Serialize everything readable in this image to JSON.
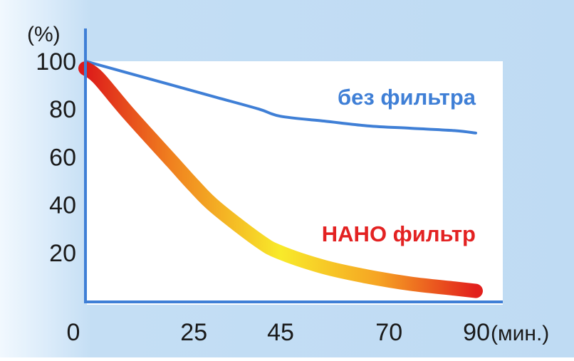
{
  "chart_data": {
    "type": "line",
    "title": "",
    "xlabel": "(мин.)",
    "ylabel": "(%)",
    "x_ticks": [
      "0",
      "25",
      "45",
      "70",
      "90"
    ],
    "y_ticks": [
      "20",
      "40",
      "60",
      "80",
      "100"
    ],
    "xlim": [
      0,
      90
    ],
    "ylim": [
      0,
      100
    ],
    "grid": false,
    "series": [
      {
        "name": "без фильтра",
        "color": "#3f7fd6",
        "x": [
          0,
          10,
          20,
          30,
          40,
          45,
          55,
          65,
          75,
          85,
          90
        ],
        "y": [
          100,
          95,
          90,
          85,
          80,
          77,
          75,
          73,
          72,
          71,
          70
        ]
      },
      {
        "name": "НАНО фильтр",
        "color": "#e32222",
        "gradient": [
          "#e01c1c",
          "#f7ee2c",
          "#e01c1c"
        ],
        "x": [
          0,
          3,
          10,
          20,
          25,
          30,
          40,
          45,
          55,
          65,
          75,
          85,
          90
        ],
        "y": [
          97,
          93,
          78,
          58,
          48,
          39,
          25,
          20,
          14,
          10,
          7,
          5,
          4
        ]
      }
    ]
  }
}
